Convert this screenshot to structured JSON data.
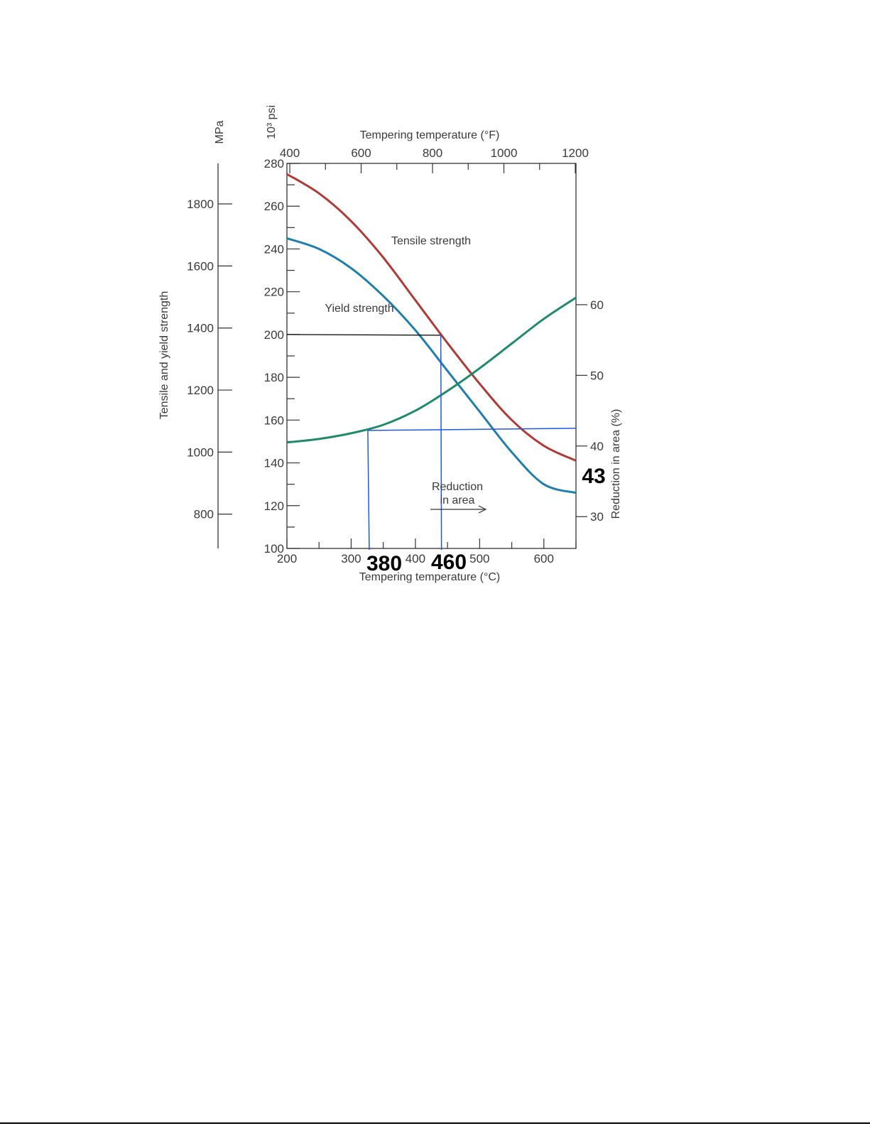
{
  "chart_data": {
    "type": "line",
    "title": "",
    "top_axis": {
      "label": "Tempering temperature (°F)",
      "ticks": [
        400,
        600,
        800,
        1000,
        1200
      ],
      "range": [
        392,
        1202
      ]
    },
    "bottom_axis": {
      "label": "Tempering temperature (°C)",
      "ticks": [
        200,
        300,
        400,
        500,
        600
      ],
      "range": [
        200,
        650
      ]
    },
    "left_axis_ksi": {
      "label": "10³ psi",
      "ticks": [
        100,
        120,
        140,
        160,
        180,
        200,
        220,
        240,
        260,
        280
      ],
      "range": [
        100,
        280
      ]
    },
    "left_axis_mpa": {
      "label": "MPa",
      "ticks": [
        800,
        1000,
        1200,
        1400,
        1600,
        1800
      ]
    },
    "left_axis_title": "Tensile and yield strength",
    "right_axis": {
      "label": "Reduction in area (%)",
      "ticks": [
        30,
        40,
        50,
        60
      ],
      "range": [
        25.5,
        80
      ]
    },
    "series": [
      {
        "name": "Tensile strength",
        "axis": "left",
        "color": "#b03a34",
        "x": [
          200,
          250,
          300,
          350,
          400,
          450,
          500,
          550,
          600,
          650
        ],
        "y": [
          275,
          266,
          253,
          236,
          216,
          196,
          177,
          160,
          148,
          141
        ]
      },
      {
        "name": "Yield strength",
        "axis": "left",
        "color": "#1f7eae",
        "x": [
          200,
          250,
          300,
          350,
          400,
          450,
          500,
          550,
          600,
          650
        ],
        "y": [
          245,
          240,
          231,
          218,
          202,
          183,
          164,
          145,
          130,
          126
        ]
      },
      {
        "name": "Reduction in area",
        "axis": "right",
        "color": "#1f8a6a",
        "x": [
          200,
          250,
          300,
          350,
          400,
          450,
          500,
          550,
          600,
          650
        ],
        "y": [
          40.5,
          41.0,
          41.8,
          43.0,
          45.0,
          47.8,
          51.0,
          54.5,
          58.0,
          61.0
        ]
      }
    ],
    "annotations": [
      {
        "text": "Tensile strength"
      },
      {
        "text": "Yield strength"
      },
      {
        "line1": "Reduction",
        "line2": "in area"
      }
    ],
    "overlay_marks": {
      "black_line": {
        "x1": 200,
        "x2": 455,
        "y": 200
      },
      "blue_yield": {
        "x": 455,
        "y": 200
      },
      "blue_ra": {
        "x": 337,
        "y": 41.8
      },
      "handwritten": [
        "380",
        "460",
        "43"
      ]
    },
    "grid": false,
    "legend": "none"
  }
}
